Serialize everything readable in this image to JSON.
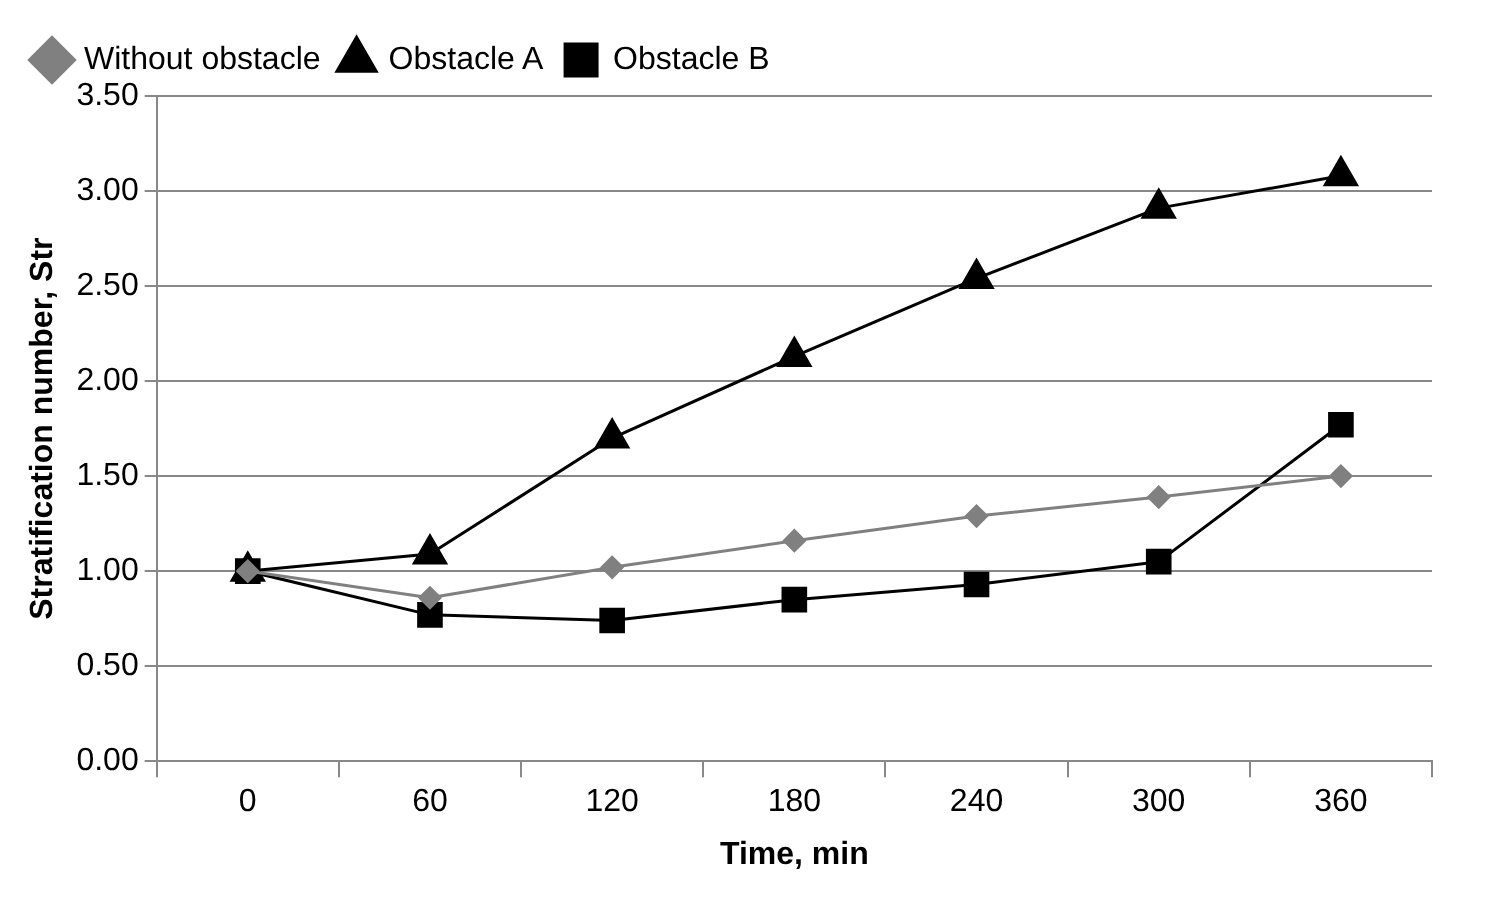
{
  "chart_data": {
    "type": "line",
    "xlabel": "Time, min",
    "ylabel": "Stratification number, Str",
    "categories": [
      "0",
      "60",
      "120",
      "180",
      "240",
      "300",
      "360"
    ],
    "series": [
      {
        "name": "Without obstacle",
        "color": "#808080",
        "marker": "diamond",
        "values": [
          1.0,
          0.86,
          1.02,
          1.16,
          1.29,
          1.39,
          1.5
        ]
      },
      {
        "name": "Obstacle A",
        "color": "#000000",
        "marker": "triangle",
        "values": [
          1.0,
          1.09,
          1.7,
          2.13,
          2.54,
          2.91,
          3.08
        ]
      },
      {
        "name": "Obstacle B",
        "color": "#000000",
        "marker": "square",
        "values": [
          1.0,
          0.77,
          0.74,
          0.85,
          0.93,
          1.05,
          1.77
        ]
      }
    ],
    "ylim": [
      0,
      3.5
    ],
    "yticks": [
      {
        "value": 0,
        "label": "0.00"
      },
      {
        "value": 0.5,
        "label": "0.50"
      },
      {
        "value": 1,
        "label": "1.00"
      },
      {
        "value": 1.5,
        "label": "1.50"
      },
      {
        "value": 2,
        "label": "2.00"
      },
      {
        "value": 2.5,
        "label": "2.50"
      },
      {
        "value": 3,
        "label": "3.00"
      },
      {
        "value": 3.5,
        "label": "3.50"
      }
    ],
    "grid": "y",
    "legend": "top"
  }
}
